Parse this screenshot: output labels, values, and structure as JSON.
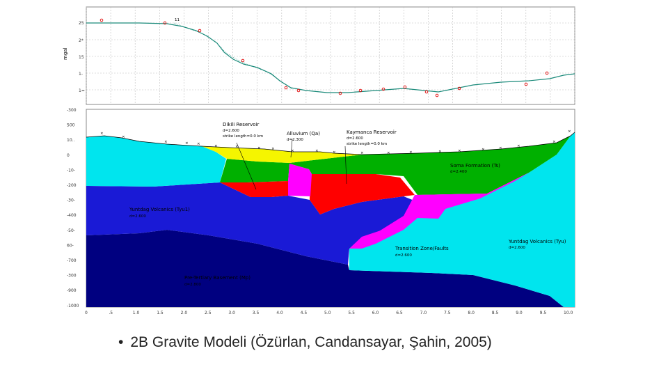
{
  "gravity_panel": {
    "y_axis_label": "mgal",
    "y_ticks": [
      "25",
      "2*",
      "15",
      "1-",
      "1="
    ],
    "point_flag_label": "11"
  },
  "model_panel": {
    "depth_ticks": [
      "-300",
      "500",
      "10..",
      "0",
      "-10-",
      "-200",
      "-30-",
      "-400",
      "-50-",
      "60-",
      "-700",
      "-300",
      "-900",
      "-1000"
    ],
    "x_ticks": [
      "0",
      ".5",
      "1.0",
      "1.5",
      "2.0",
      "2.5",
      "3.0",
      "3.5",
      "4.0",
      "4.5",
      "5.0",
      "5.5",
      "6.0",
      "6.5",
      "7.0",
      "7.5",
      "8.0",
      "8.5",
      "9.0",
      "9.5",
      "10.0"
    ],
    "colors": {
      "cyan": "#00e5ee",
      "blue": "#1a1ad6",
      "navy": "#000080",
      "green": "#00b000",
      "yellow": "#f5f500",
      "red": "#ff0000",
      "magenta": "#ff00ff"
    },
    "layers": [
      {
        "name": "Dikili Reservoir",
        "line2": "d=2.600",
        "line3": "strike length=0.0 km"
      },
      {
        "name": "Alluvium (Qa)",
        "line2": "d=2.300"
      },
      {
        "name": "Kaymanca Reservoir",
        "line2": "d=2.600",
        "line3": "strike length=0.0 km"
      },
      {
        "name": "Soma Formation (Ts)",
        "line2": "d=2.400"
      },
      {
        "name": "Yuntdag Volcanics (Tyu1)",
        "line2": "d=2.600"
      },
      {
        "name": "Yuntdag Volcanics (Tyu)",
        "line2": "d=2.600"
      },
      {
        "name": "Transition Zone/Faults",
        "line2": "d=2.600"
      },
      {
        "name": "Pre-Tertiary Basement (Mp)",
        "line2": "d=2.800"
      }
    ]
  },
  "caption": {
    "bullet": "•",
    "text": "2B Gravite Modeli (Özürlan, Candansayar, Şahin, 2005)"
  }
}
